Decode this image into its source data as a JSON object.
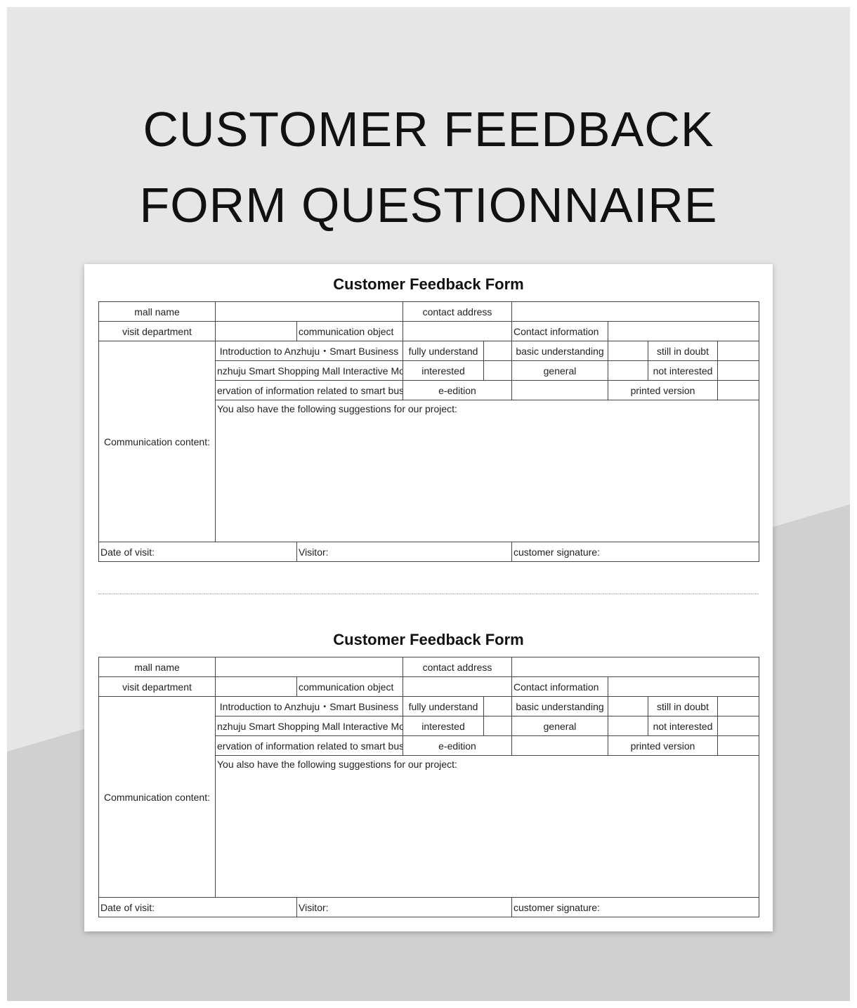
{
  "page": {
    "title_line1": "CUSTOMER FEEDBACK",
    "title_line2": "FORM QUESTIONNAIRE"
  },
  "colors": {
    "background_light": "#e6e6e6",
    "background_dark": "#d0d0d0",
    "sheet": "#ffffff"
  },
  "forms": [
    {
      "title": "Customer Feedback Form",
      "mall_name": "mall name",
      "contact_address": "contact address",
      "visit_department": "visit department",
      "communication_object": "communication object",
      "contact_information": "Contact information",
      "communication_content": "Communication content:",
      "item1": "Introduction to Anzhuju・Smart Business",
      "item2": "nzhuju Smart Shopping Mall Interactive Mod",
      "item3": "ervation of information related to smart bus",
      "fully_understand": "fully understand",
      "basic_understanding": "basic understanding",
      "still_in_doubt": "still in doubt",
      "interested": "interested",
      "general": "general",
      "not_interested": "not interested",
      "e_edition": "e-edition",
      "printed_version": "printed version",
      "suggestions": "You also have the following suggestions for our project:",
      "date_of_visit": "Date of visit:",
      "visitor": "Visitor:",
      "customer_signature": "customer signature:"
    },
    {
      "title": "Customer Feedback Form",
      "mall_name": "mall name",
      "contact_address": "contact address",
      "visit_department": "visit department",
      "communication_object": "communication object",
      "contact_information": "Contact information",
      "communication_content": "Communication content:",
      "item1": "Introduction to Anzhuju・Smart Business",
      "item2": "nzhuju Smart Shopping Mall Interactive Mod",
      "item3": "ervation of information related to smart bus",
      "fully_understand": "fully understand",
      "basic_understanding": "basic understanding",
      "still_in_doubt": "still in doubt",
      "interested": "interested",
      "general": "general",
      "not_interested": "not interested",
      "e_edition": "e-edition",
      "printed_version": "printed version",
      "suggestions": "You also have the following suggestions for our project:",
      "date_of_visit": "Date of visit:",
      "visitor": "Visitor:",
      "customer_signature": "customer signature:"
    }
  ]
}
